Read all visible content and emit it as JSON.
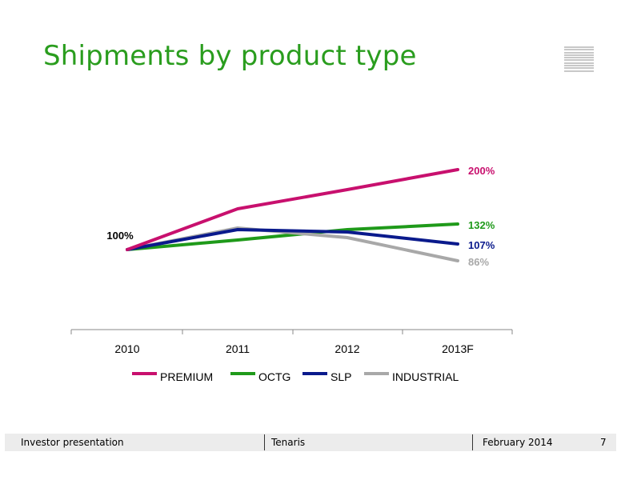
{
  "slide": {
    "title": "Shipments by product type"
  },
  "footer": {
    "left": "Investor presentation",
    "center": "Tenaris",
    "date": "February 2014",
    "page": "7"
  },
  "colors": {
    "title_green": "#2a9d1e",
    "premium": "#c8106e",
    "octg": "#1f9a1a",
    "slp": "#0a1a8c",
    "industrial": "#a8a8a8"
  },
  "chart_data": {
    "type": "line",
    "categories": [
      "2010",
      "2011",
      "2012",
      "2013F"
    ],
    "series": [
      {
        "name": "PREMIUM",
        "color": "#c8106e",
        "values": [
          100,
          151,
          175,
          200
        ]
      },
      {
        "name": "OCTG",
        "color": "#1f9a1a",
        "values": [
          100,
          112,
          125,
          132
        ]
      },
      {
        "name": "SLP",
        "color": "#0a1a8c",
        "values": [
          100,
          125,
          122,
          107
        ]
      },
      {
        "name": "INDUSTRIAL",
        "color": "#a8a8a8",
        "values": [
          100,
          127,
          115,
          86
        ]
      }
    ],
    "annotations": [
      {
        "text": "100%",
        "series": "ALL",
        "index": 0,
        "color": "#000000"
      },
      {
        "text": "200%",
        "series": "PREMIUM",
        "index": 3,
        "color": "#c8106e"
      },
      {
        "text": "132%",
        "series": "OCTG",
        "index": 3,
        "color": "#1f9a1a"
      },
      {
        "text": "107%",
        "series": "SLP",
        "index": 3,
        "color": "#0a1a8c"
      },
      {
        "text": "86%",
        "series": "INDUSTRIAL",
        "index": 3,
        "color": "#a8a8a8"
      }
    ],
    "legend_position": "bottom",
    "grid": false,
    "yaxis_visible": false
  }
}
